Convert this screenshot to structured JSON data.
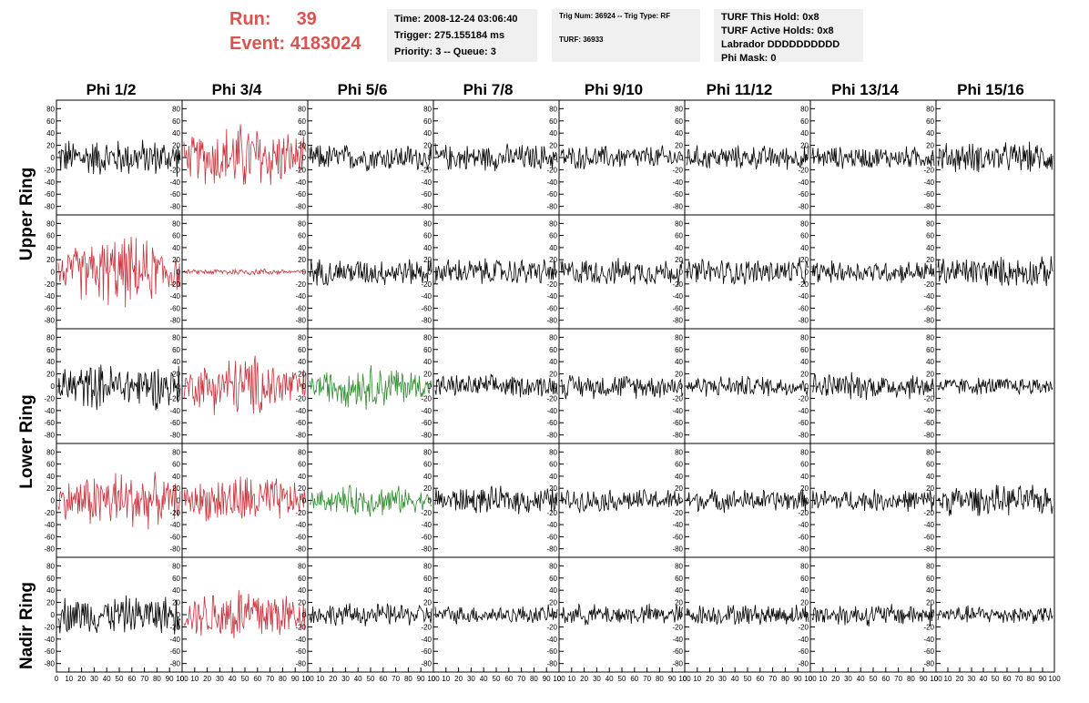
{
  "header": {
    "run_label": "Run:",
    "run_value": "39",
    "event_label": "Event:",
    "event_value": "4183024",
    "time": "Time: 2008-12-24 03:06:40",
    "trigger": "Trigger: 275.155184 ms",
    "priority": "Priority: 3 -- Queue: 3",
    "trig_num": "Trig Num: 36924 -- Trig Type: RF",
    "turf": "TURF: 36933",
    "turf_this_hold": "TURF This Hold: 0x8",
    "turf_active_holds": "TURF Active Holds: 0x8",
    "labrador": "Labrador DDDDDDDDDD",
    "phi_mask": "Phi Mask: 0"
  },
  "columns": [
    "Phi 1/2",
    "Phi 3/4",
    "Phi 5/6",
    "Phi 7/8",
    "Phi 9/10",
    "Phi 11/12",
    "Phi 13/14",
    "Phi 15/16"
  ],
  "rings": [
    "Upper Ring",
    "Lower Ring",
    "Nadir Ring"
  ],
  "colors": {
    "normal": "#000000",
    "triggered_red": "#c8323c",
    "triggered_green": "#2e8b2e",
    "run_text": "#d9534f",
    "info_bg": "#f0f0f0"
  },
  "chart_data": {
    "type": "line",
    "description_grid": "5 rows x 8 columns of waveform panels",
    "y_ticks": [
      80,
      60,
      40,
      20,
      0,
      -20,
      -40,
      -60,
      -80
    ],
    "ylim": [
      -85,
      85
    ],
    "x_ticks": [
      0,
      10,
      20,
      30,
      40,
      50,
      60,
      70,
      80,
      90,
      100
    ],
    "xlim": [
      0,
      100
    ],
    "panel_rows": [
      {
        "ring": "Upper Ring",
        "colors": [
          "normal",
          "red",
          "normal",
          "normal",
          "normal",
          "normal",
          "normal",
          "normal"
        ],
        "amplitude": [
          25,
          40,
          18,
          18,
          16,
          16,
          15,
          20
        ]
      },
      {
        "ring": "Upper Ring",
        "colors": [
          "red",
          "red",
          "normal",
          "normal",
          "normal",
          "normal",
          "normal",
          "normal"
        ],
        "amplitude": [
          40,
          4,
          18,
          18,
          18,
          18,
          15,
          20
        ]
      },
      {
        "ring": "Lower Ring",
        "colors": [
          "normal",
          "red",
          "green",
          "normal",
          "normal",
          "normal",
          "normal",
          "normal"
        ],
        "amplitude": [
          30,
          35,
          25,
          15,
          16,
          14,
          18,
          12
        ]
      },
      {
        "ring": "Lower Ring",
        "colors": [
          "red",
          "red",
          "green",
          "normal",
          "normal",
          "normal",
          "normal",
          "normal"
        ],
        "amplitude": [
          35,
          30,
          18,
          18,
          15,
          15,
          15,
          20
        ]
      },
      {
        "ring": "Nadir Ring",
        "colors": [
          "normal",
          "red",
          "normal",
          "normal",
          "normal",
          "normal",
          "normal",
          "normal"
        ],
        "amplitude": [
          25,
          35,
          15,
          12,
          14,
          14,
          15,
          12
        ]
      }
    ]
  }
}
